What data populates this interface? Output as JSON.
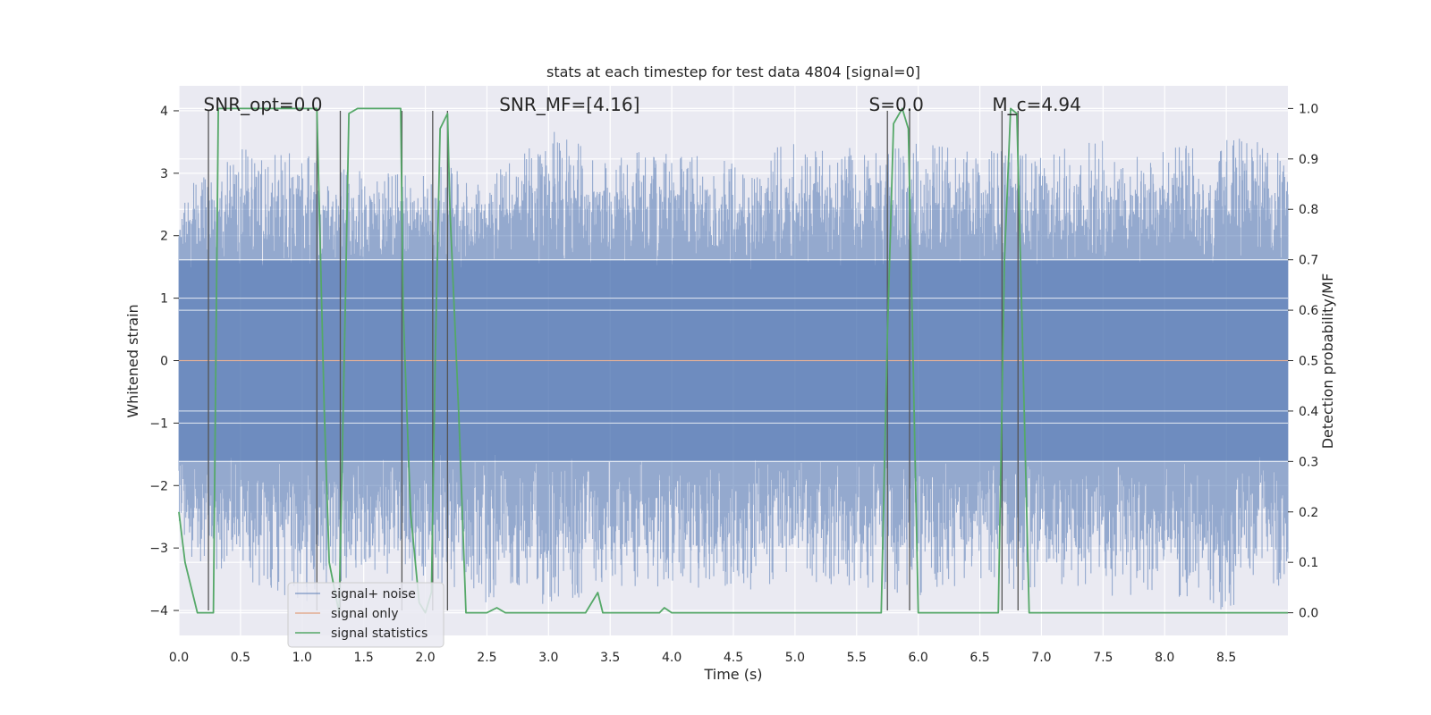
{
  "chart_data": {
    "type": "line",
    "title": "stats at each timestep for test data 4804 [signal=0]",
    "xlabel": "Time (s)",
    "ylabel": "Whitened strain",
    "y2label": "Detection probability/MF",
    "xlim": [
      0.0,
      9.0
    ],
    "ylim": [
      -4.4,
      4.4
    ],
    "y2lim": [
      -0.045,
      1.045
    ],
    "xticks": [
      0.0,
      0.5,
      1.0,
      1.5,
      2.0,
      2.5,
      3.0,
      3.5,
      4.0,
      4.5,
      5.0,
      5.5,
      6.0,
      6.5,
      7.0,
      7.5,
      8.0,
      8.5
    ],
    "xtick_labels": [
      "0.0",
      "0.5",
      "1.0",
      "1.5",
      "2.0",
      "2.5",
      "3.0",
      "3.5",
      "4.0",
      "4.5",
      "5.0",
      "5.5",
      "6.0",
      "6.5",
      "7.0",
      "7.5",
      "8.0",
      "8.5"
    ],
    "yticks": [
      4,
      3,
      2,
      1,
      0,
      -1,
      -2,
      -3,
      -4
    ],
    "ytick_labels": [
      "4",
      "3",
      "2",
      "1",
      "0",
      "−1",
      "−2",
      "−3",
      "−4"
    ],
    "y2ticks": [
      1.0,
      0.9,
      0.8,
      0.7,
      0.6,
      0.5,
      0.4,
      0.3,
      0.2,
      0.1,
      0.0
    ],
    "y2tick_labels": [
      "1.0",
      "0.9",
      "0.8",
      "0.7",
      "0.6",
      "0.5",
      "0.4",
      "0.3",
      "0.2",
      "0.1",
      "0.0"
    ],
    "noise_envelope": {
      "t": [
        0.0,
        0.5,
        1.0,
        1.5,
        2.0,
        2.5,
        3.0,
        3.5,
        4.0,
        4.5,
        5.0,
        5.5,
        6.0,
        6.5,
        7.0,
        7.5,
        8.0,
        8.5,
        9.0
      ],
      "upper": [
        2.7,
        3.5,
        3.3,
        3.1,
        3.2,
        3.0,
        3.7,
        3.3,
        3.4,
        3.2,
        3.5,
        3.4,
        3.5,
        3.5,
        3.3,
        3.6,
        3.4,
        3.6,
        3.4
      ],
      "lower": [
        -3.2,
        -3.5,
        -3.9,
        -3.5,
        -3.6,
        -3.9,
        -3.9,
        -3.7,
        -3.6,
        -3.7,
        -3.6,
        -3.6,
        -3.8,
        -3.5,
        -3.8,
        -3.8,
        -3.8,
        -4.0,
        -3.6
      ]
    },
    "series": [
      {
        "name": "signal+ noise",
        "color": "#4c72b0",
        "axis": "left",
        "style": "dense noise band"
      },
      {
        "name": "signal only",
        "color": "#dd8452",
        "axis": "left",
        "x": [
          0.0,
          9.0
        ],
        "y": [
          0.0,
          0.0
        ]
      },
      {
        "name": "signal statistics",
        "color": "#55a868",
        "axis": "right",
        "x": [
          0.0,
          0.05,
          0.15,
          0.2,
          0.25,
          0.28,
          0.32,
          0.5,
          0.7,
          1.0,
          1.1,
          1.12,
          1.18,
          1.22,
          1.3,
          1.35,
          1.38,
          1.45,
          1.6,
          1.75,
          1.8,
          1.82,
          1.88,
          1.95,
          2.0,
          2.05,
          2.08,
          2.12,
          2.18,
          2.2,
          2.27,
          2.33,
          2.5,
          2.58,
          2.65,
          2.8,
          3.0,
          3.3,
          3.4,
          3.44,
          3.52,
          3.7,
          3.9,
          3.94,
          4.0,
          4.3,
          4.8,
          5.3,
          5.7,
          5.75,
          5.8,
          5.87,
          5.92,
          6.0,
          6.05,
          6.2,
          6.6,
          6.65,
          6.7,
          6.75,
          6.8,
          6.85,
          6.9,
          7.3,
          8.0,
          8.5,
          9.0
        ],
        "y": [
          0.2,
          0.1,
          0.0,
          0.0,
          0.0,
          0.0,
          1.0,
          1.0,
          1.0,
          1.0,
          1.0,
          1.0,
          0.4,
          0.1,
          0.0,
          0.6,
          0.99,
          1.0,
          1.0,
          1.0,
          1.0,
          0.6,
          0.2,
          0.02,
          0.0,
          0.04,
          0.5,
          0.96,
          0.99,
          0.8,
          0.4,
          0.0,
          0.0,
          0.01,
          0.0,
          0.0,
          0.0,
          0.0,
          0.04,
          0.0,
          0.0,
          0.0,
          0.0,
          0.01,
          0.0,
          0.0,
          0.0,
          0.0,
          0.0,
          0.55,
          0.97,
          1.0,
          0.96,
          0.0,
          0.0,
          0.0,
          0.0,
          0.0,
          0.7,
          1.0,
          0.99,
          0.5,
          0.0,
          0.0,
          0.0,
          0.0,
          0.0
        ]
      }
    ],
    "vlines": [
      0.24,
      1.12,
      1.31,
      1.81,
      2.06,
      2.18,
      5.75,
      5.93,
      6.68,
      6.81
    ],
    "annotations": [
      {
        "text": "SNR_opt=0.0",
        "x": 0.2
      },
      {
        "text": "SNR_MF=[4.16]",
        "x": 2.6
      },
      {
        "text": "S=0.0",
        "x": 5.6
      },
      {
        "text": "M_c=4.94",
        "x": 6.6
      }
    ],
    "legend": {
      "position": "lower-left",
      "entries": [
        {
          "label": "signal+ noise",
          "color": "#4c72b0"
        },
        {
          "label": "signal only",
          "color": "#dd8452"
        },
        {
          "label": "signal statistics",
          "color": "#55a868"
        }
      ]
    },
    "grid": true,
    "background": "#eaeaf2"
  }
}
